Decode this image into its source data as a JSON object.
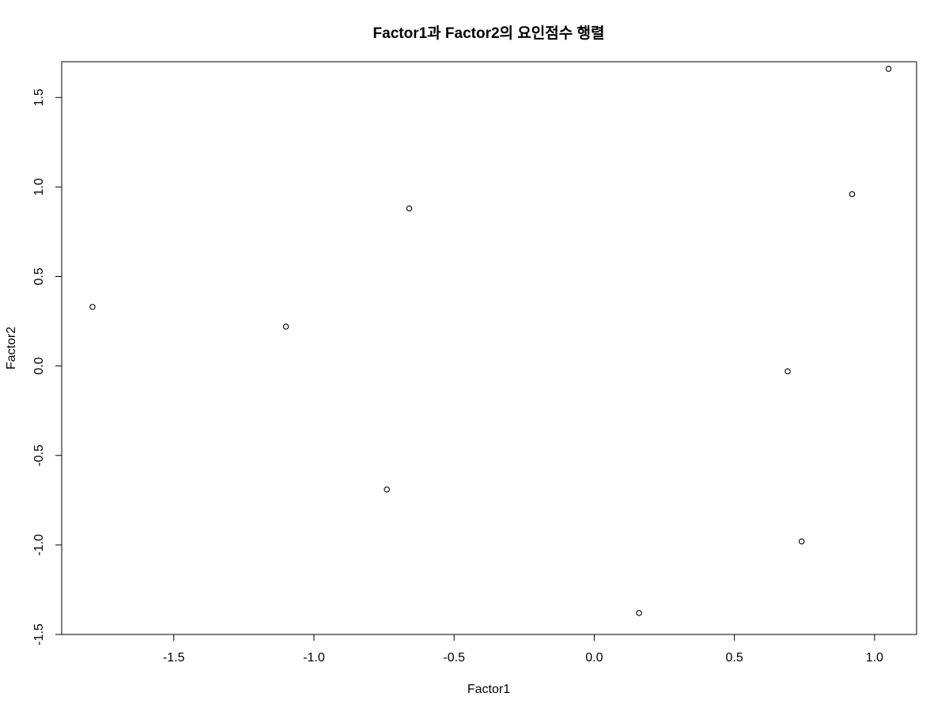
{
  "chart_data": {
    "type": "scatter",
    "title": "Factor1과 Factor2의 요인점수 행렬",
    "xlabel": "Factor1",
    "ylabel": "Factor2",
    "xlim": [
      -1.9,
      1.15
    ],
    "ylim": [
      -1.5,
      1.7
    ],
    "xticks": [
      -1.5,
      -1.0,
      -0.5,
      0.0,
      0.5,
      1.0
    ],
    "xtick_labels": [
      "-1.5",
      "-1.0",
      "-0.5",
      "0.0",
      "0.5",
      "1.0"
    ],
    "yticks": [
      -1.5,
      -1.0,
      -0.5,
      0.0,
      0.5,
      1.0,
      1.5
    ],
    "ytick_labels": [
      "-1.5",
      "-1.0",
      "-0.5",
      "0.0",
      "0.5",
      "1.0",
      "1.5"
    ],
    "grid": false,
    "marker": "open-circle",
    "points": [
      {
        "x": -1.79,
        "y": 0.33
      },
      {
        "x": -1.1,
        "y": 0.22
      },
      {
        "x": -0.66,
        "y": 0.88
      },
      {
        "x": -0.74,
        "y": -0.69
      },
      {
        "x": 0.16,
        "y": -1.38
      },
      {
        "x": 0.69,
        "y": -0.03
      },
      {
        "x": 0.74,
        "y": -0.98
      },
      {
        "x": 0.92,
        "y": 0.96
      },
      {
        "x": 1.05,
        "y": 1.66
      }
    ]
  }
}
